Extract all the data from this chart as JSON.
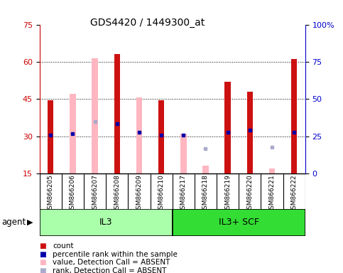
{
  "title": "GDS4420 / 1449300_at",
  "samples": [
    "GSM866205",
    "GSM866206",
    "GSM866207",
    "GSM866208",
    "GSM866209",
    "GSM866210",
    "GSM866217",
    "GSM866218",
    "GSM866219",
    "GSM866220",
    "GSM866221",
    "GSM866222"
  ],
  "red_bars": [
    44.5,
    null,
    null,
    63.0,
    null,
    44.5,
    null,
    null,
    52.0,
    48.0,
    null,
    61.0
  ],
  "pink_bars": [
    null,
    47.0,
    61.5,
    null,
    45.5,
    null,
    31.0,
    18.0,
    null,
    null,
    17.0,
    null
  ],
  "blue_dots": [
    30.5,
    31.0,
    null,
    35.0,
    31.5,
    30.5,
    30.5,
    null,
    31.5,
    32.5,
    null,
    31.5
  ],
  "lavender_dots": [
    null,
    null,
    36.0,
    null,
    null,
    null,
    null,
    25.0,
    null,
    null,
    25.5,
    null
  ],
  "ylim_left": [
    15,
    75
  ],
  "ylim_right": [
    0,
    100
  ],
  "yticks_left": [
    15,
    30,
    45,
    60,
    75
  ],
  "yticks_right": [
    0,
    25,
    50,
    75,
    100
  ],
  "left_tick_color": "#CC0000",
  "right_tick_color": "#0000CC",
  "red_color": "#CC1111",
  "pink_color": "#FFB6C1",
  "blue_color": "#0000AA",
  "lavender_color": "#AAAACC",
  "il3_color": "#AAFFAA",
  "scf_color": "#33DD33",
  "xtick_bg": "#CCCCCC",
  "bar_width": 0.45,
  "agent_label": "agent",
  "il3_label": "IL3",
  "scf_label": "IL3+ SCF",
  "legend_items": [
    {
      "color": "#CC1111",
      "label": "count"
    },
    {
      "color": "#0000AA",
      "label": "percentile rank within the sample"
    },
    {
      "color": "#FFB6C1",
      "label": "value, Detection Call = ABSENT"
    },
    {
      "color": "#AAAACC",
      "label": "rank, Detection Call = ABSENT"
    }
  ]
}
